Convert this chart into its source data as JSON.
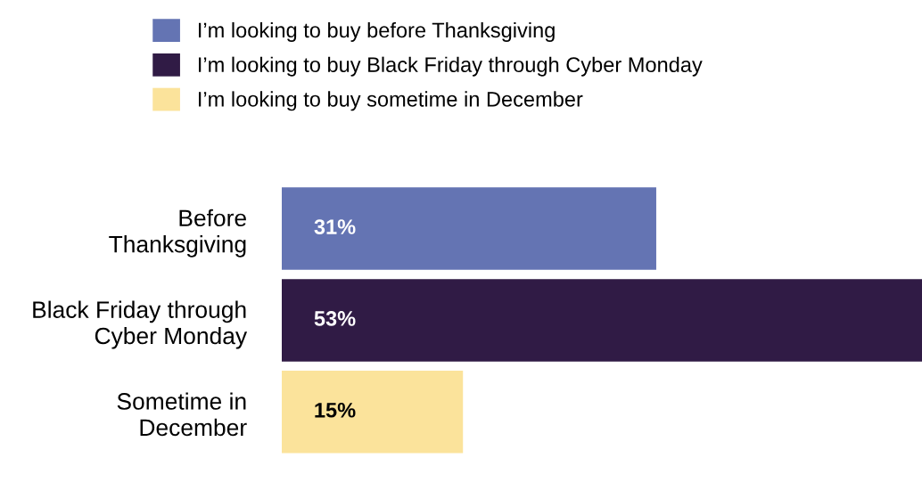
{
  "chart_data": {
    "type": "bar",
    "orientation": "horizontal",
    "categories": [
      "Before\nThanksgiving",
      "Black Friday through\nCyber Monday",
      "Sometime in\nDecember"
    ],
    "series": [
      {
        "name": "I’m looking to buy before Thanksgiving",
        "color": "#6474b3",
        "values": [
          31,
          null,
          null
        ],
        "value_labels": [
          "31%",
          null,
          null
        ]
      },
      {
        "name": "I’m looking to buy Black Friday through Cyber Monday",
        "color": "#301b45",
        "values": [
          null,
          53,
          null
        ],
        "value_labels": [
          null,
          "53%",
          null
        ]
      },
      {
        "name": "I’m looking to buy sometime in December",
        "color": "#fbe39b",
        "values": [
          null,
          null,
          15
        ],
        "value_labels": [
          null,
          null,
          "15%"
        ]
      }
    ],
    "xlim": [
      0,
      53
    ],
    "tick_labels": "y",
    "grid": false,
    "legend": "top"
  }
}
